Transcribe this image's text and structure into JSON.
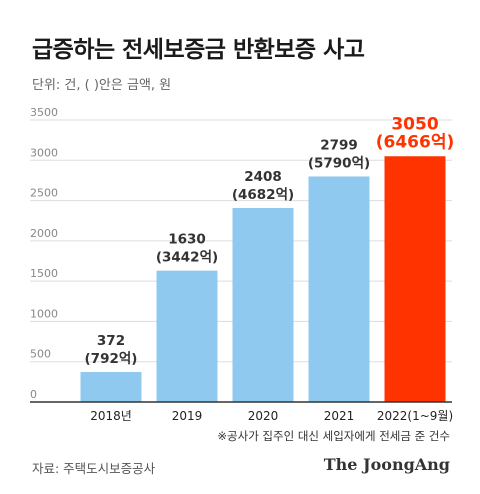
{
  "header": {
    "title": "급증하는 전세보증금 반환보증 사고",
    "unit": "단위: 건, ( )안은 금액, 원"
  },
  "footer": {
    "note": "※공사가 집주인 대신 세입자에게 전세금 준 건수",
    "source": "자료: 주택도시보증공사",
    "brand": "The JoongAng"
  },
  "colors": {
    "bar": "#8fc9f0",
    "highlight_bar": "#ff3300",
    "highlight_text": "#ff3300",
    "grid": "#dddddd",
    "axis": "#333333"
  },
  "chart_data": {
    "type": "bar",
    "categories": [
      "2018년",
      "2019",
      "2020",
      "2021",
      "2022(1~9월)"
    ],
    "values": [
      372,
      1630,
      2408,
      2799,
      3050
    ],
    "amount_labels": [
      "(792억)",
      "(3442억)",
      "(4682억)",
      "(5790억)",
      "(6466억)"
    ],
    "highlight_index": 4,
    "ylim": [
      0,
      3500
    ],
    "yticks": [
      0,
      500,
      1000,
      1500,
      2000,
      2500,
      3000,
      3500
    ],
    "grid": true,
    "title": "급증하는 전세보증금 반환보증 사고",
    "xlabel": "",
    "ylabel": ""
  }
}
